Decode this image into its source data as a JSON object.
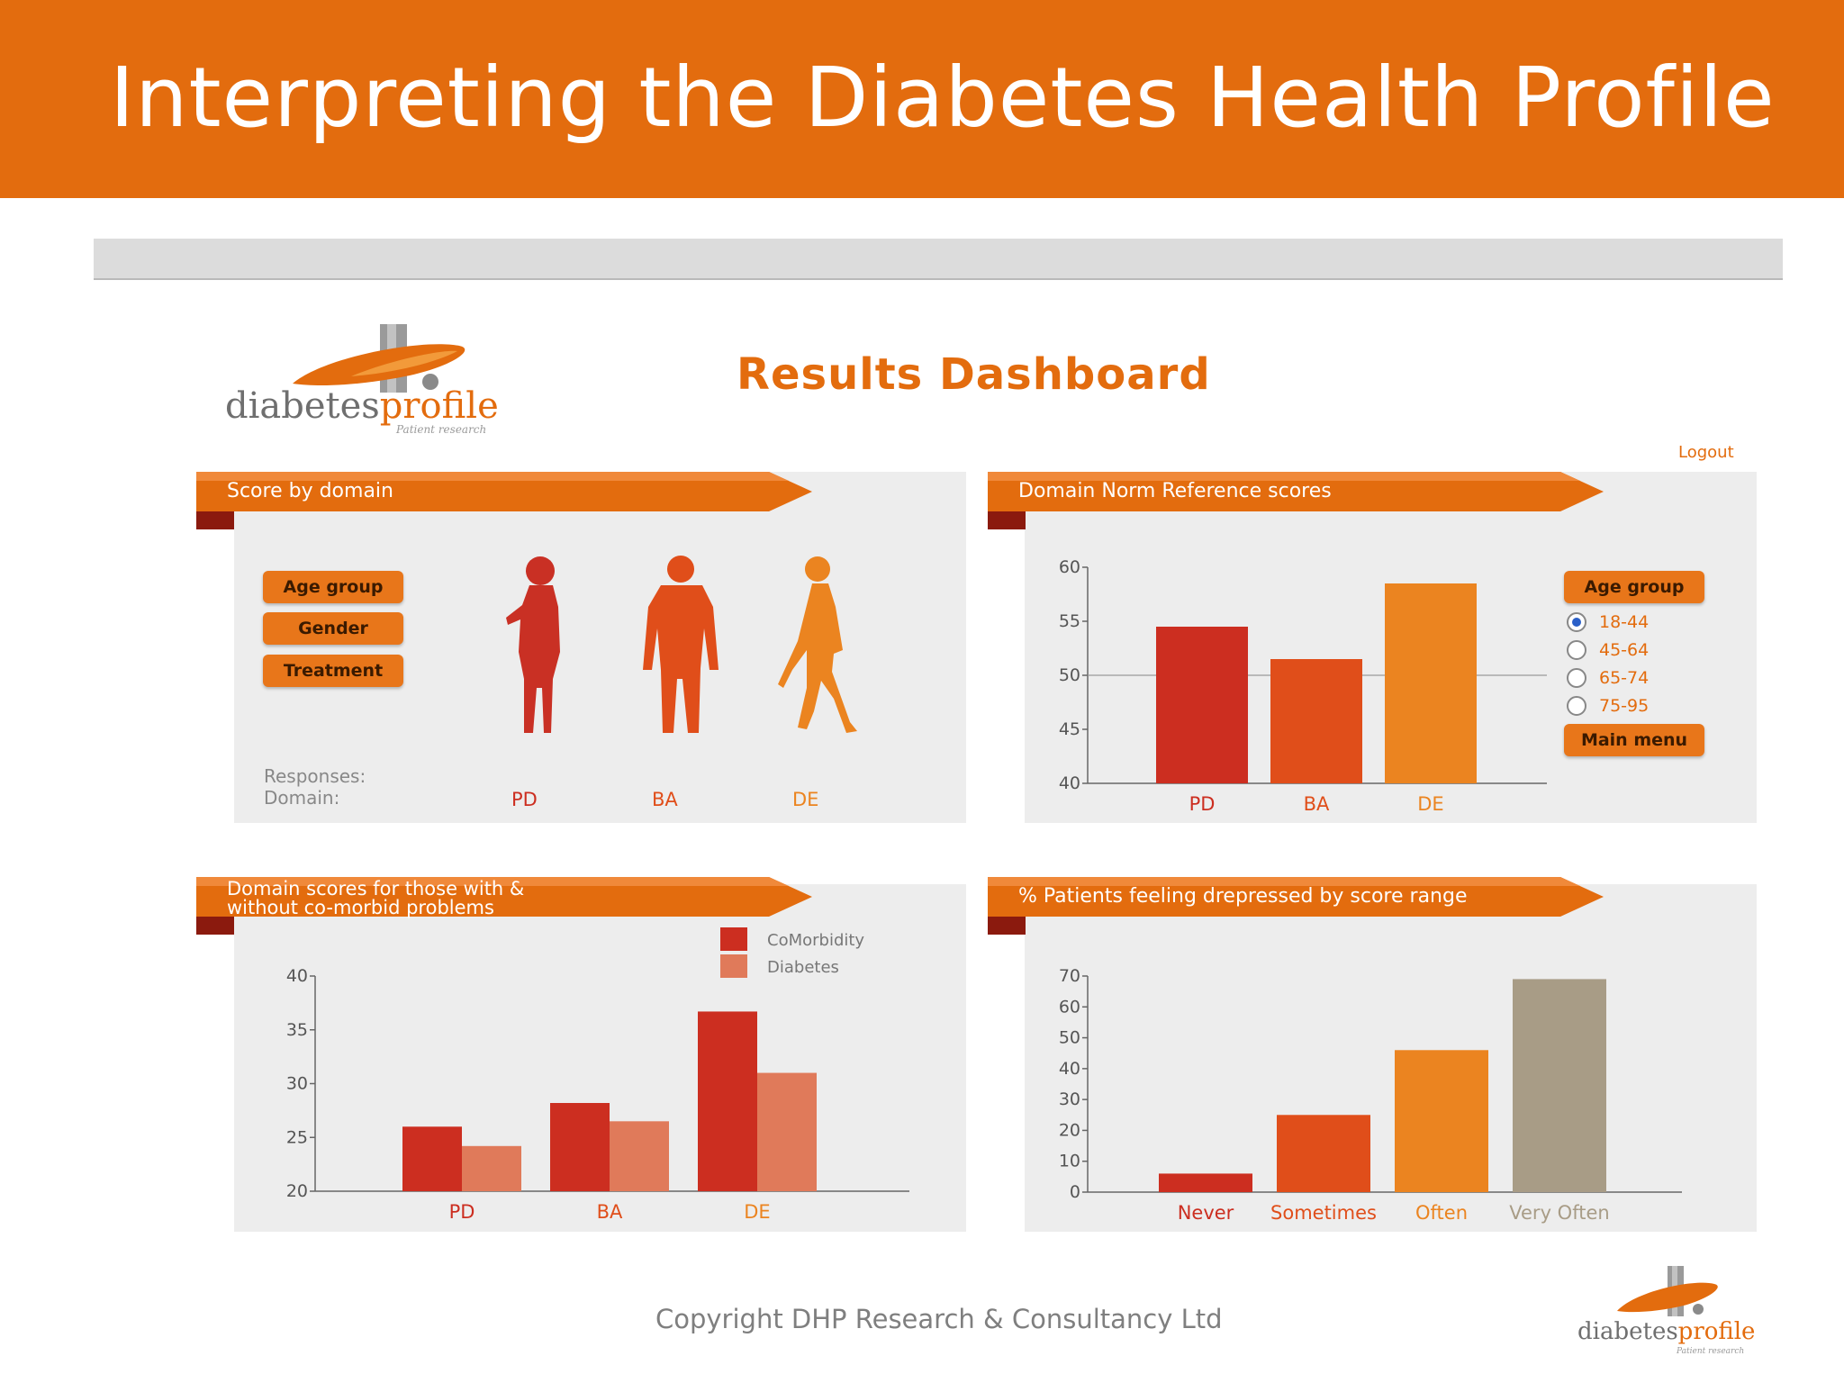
{
  "slide": {
    "title": "Interpreting the Diabetes Health Profile",
    "copyright": "Copyright DHP Research & Consultancy Ltd"
  },
  "logo": {
    "word_part1": "diabetes",
    "word_part2": "profile",
    "tagline": "Patient research"
  },
  "dashboard": {
    "title": "Results Dashboard",
    "logout_label": "Logout"
  },
  "colors": {
    "brand_orange": "#E36C0E",
    "pd": "#CC2E20",
    "ba": "#E04E1A",
    "de": "#EB8420",
    "comorbidity": "#CC2E20",
    "diabetes": "#E07A5A",
    "very_often": "#A89C86"
  },
  "panels": {
    "score_by_domain": {
      "header": "Score by domain",
      "buttons": [
        "Age group",
        "Gender",
        "Treatment"
      ],
      "responses_label": "Responses:",
      "domain_label": "Domain:",
      "domains": [
        "PD",
        "BA",
        "DE"
      ],
      "silhouette_icons": [
        "woman-silhouette-icon",
        "man-silhouette-icon",
        "walking-woman-silhouette-icon"
      ]
    },
    "norm_reference": {
      "header": "Domain Norm Reference scores",
      "age_group_label": "Age group",
      "age_options": [
        {
          "label": "18-44",
          "selected": true
        },
        {
          "label": "45-64",
          "selected": false
        },
        {
          "label": "65-74",
          "selected": false
        },
        {
          "label": "75-95",
          "selected": false
        }
      ],
      "main_menu_label": "Main menu"
    },
    "comorbid": {
      "header_line1": "Domain scores for those with &",
      "header_line2": "without co-morbid problems"
    },
    "depressed": {
      "header": "% Patients feeling drepressed by score range"
    }
  },
  "chart_data": [
    {
      "type": "bar",
      "title": "Domain Norm Reference scores",
      "categories": [
        "PD",
        "BA",
        "DE"
      ],
      "values": [
        54.5,
        51.5,
        58.5
      ],
      "ylim": [
        40,
        60
      ],
      "yticks": [
        40,
        45,
        50,
        55,
        60
      ],
      "reference_line": 50,
      "grid": false
    },
    {
      "type": "bar",
      "title": "Domain scores for those with & without co-morbid problems",
      "categories": [
        "PD",
        "BA",
        "DE"
      ],
      "series": [
        {
          "name": "CoMorbidity",
          "values": [
            26,
            28.2,
            36.7
          ]
        },
        {
          "name": "Diabetes",
          "values": [
            24.2,
            26.5,
            31
          ]
        }
      ],
      "ylim": [
        20,
        40
      ],
      "yticks": [
        20,
        25,
        30,
        35,
        40
      ],
      "legend": "top-right",
      "grid": false
    },
    {
      "type": "bar",
      "title": "% Patients feeling drepressed by score range",
      "categories": [
        "Never",
        "Sometimes",
        "Often",
        "Very Often"
      ],
      "values": [
        6,
        25,
        46,
        69
      ],
      "ylim": [
        0,
        70
      ],
      "yticks": [
        0,
        10,
        20,
        30,
        40,
        50,
        60,
        70
      ],
      "grid": false
    }
  ]
}
